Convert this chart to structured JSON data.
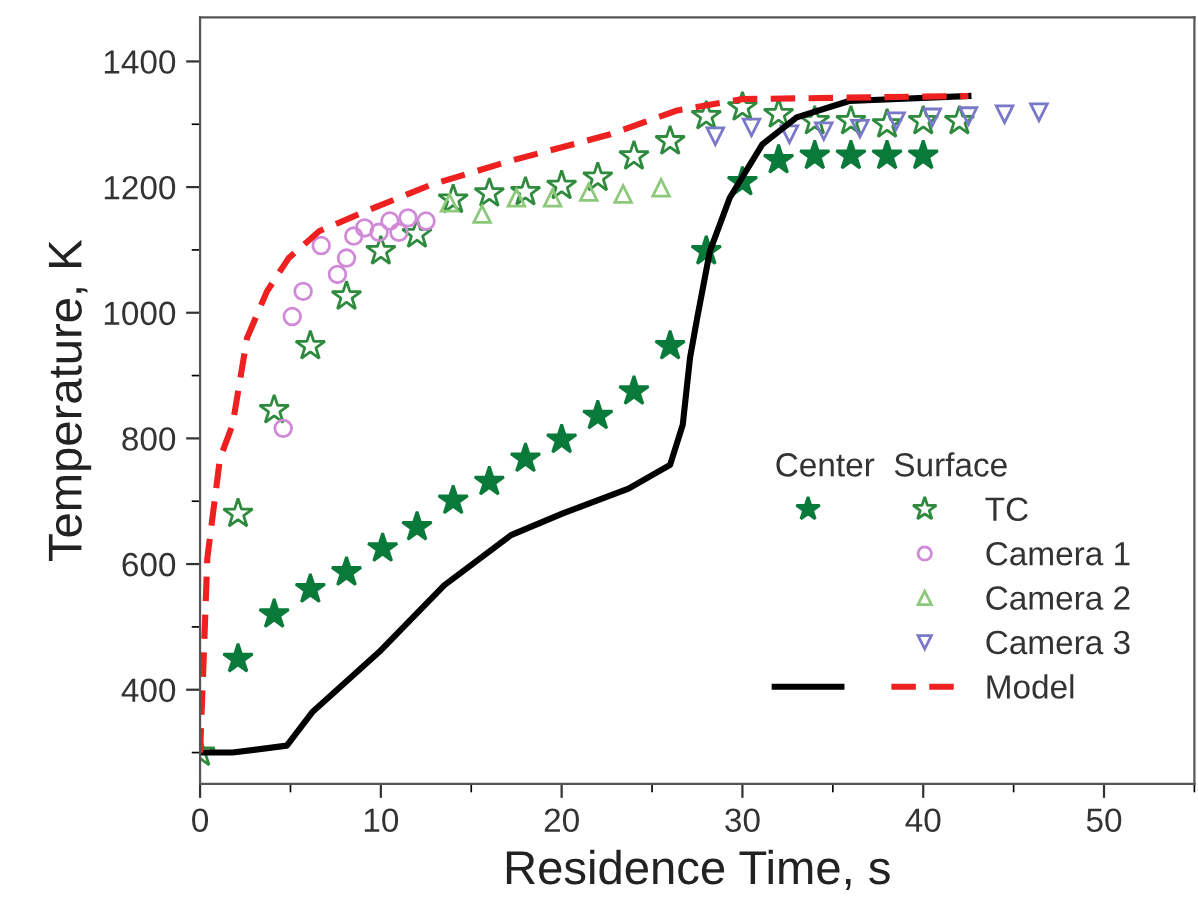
{
  "chart_data": {
    "type": "scatter",
    "xlabel": "Residence Time, s",
    "ylabel": "Temperature, K",
    "xlim": [
      0,
      55
    ],
    "ylim": [
      250,
      1470
    ],
    "xticks": [
      0,
      10,
      20,
      30,
      40,
      50
    ],
    "yticks": [
      400,
      600,
      800,
      1000,
      1200,
      1400
    ],
    "grid": false,
    "legend": "bottom right",
    "legend_title": "Center  Surface",
    "series": [
      {
        "marker": "star",
        "color": "#0a7a3a",
        "x": [
          2.1,
          4.1,
          6.1,
          8.1,
          10.1,
          12,
          14,
          16,
          18,
          20,
          22,
          24,
          26,
          28,
          30,
          32,
          34,
          36,
          38,
          40
        ],
        "values": [
          449,
          520,
          560,
          587,
          625,
          659,
          701,
          731,
          768,
          798,
          836,
          875,
          947,
          1098,
          1208,
          1243,
          1250,
          1250,
          1250,
          1250
        ]
      },
      {
        "name": "TC",
        "marker": "star",
        "color": "#2e8b3e",
        "x": [
          0,
          2.1,
          4.1,
          6.1,
          8.1,
          10,
          12,
          14,
          16,
          18,
          20,
          22,
          24,
          26,
          28,
          30,
          32,
          34,
          36,
          38,
          40,
          42
        ],
        "values": [
          300,
          680,
          845,
          947,
          1026,
          1098,
          1125,
          1180,
          1190,
          1192,
          1202,
          1215,
          1249,
          1273,
          1313,
          1327,
          1316,
          1305,
          1305,
          1300,
          1305,
          1305
        ]
      },
      {
        "name": "Camera 1",
        "marker": "circle",
        "color": "#d08ad8",
        "x": [
          4.6,
          5.1,
          5.7,
          7.6,
          8.1,
          6.7,
          8.5,
          9.1,
          9.9,
          10.5,
          11,
          11.5,
          12.5
        ],
        "values": [
          816,
          994,
          1034,
          1061,
          1087,
          1107,
          1122,
          1135,
          1128,
          1146,
          1128,
          1151,
          1146
        ]
      },
      {
        "name": "Camera 2",
        "marker": "triangle",
        "color": "#8cc97a",
        "x": [
          13.8,
          15.6,
          17.5,
          19.5,
          21.5,
          23.4,
          25.5
        ],
        "values": [
          1175,
          1157,
          1183,
          1183,
          1192,
          1189,
          1199
        ]
      },
      {
        "name": "Camera 3",
        "marker": "triangle_down",
        "color": "#7a78c8",
        "x": [
          28.5,
          30.5,
          32.6,
          34.5,
          36.5,
          38.5,
          40.5,
          42.5,
          44.5,
          46.4
        ],
        "values": [
          1281,
          1295,
          1284,
          1289,
          1293,
          1305,
          1311,
          1313,
          1316,
          1319
        ]
      },
      {
        "type": "line",
        "line_style": "solid",
        "color": "#000000",
        "x": [
          0,
          1.8,
          4.8,
          6.2,
          9.9,
          13.5,
          17.2,
          20.1,
          23.7,
          26,
          26.7,
          27.1,
          27.5,
          28.2,
          29.3,
          31.1,
          33,
          35.9,
          42.5
        ],
        "values": [
          300,
          300,
          311,
          364,
          460,
          566,
          646,
          681,
          720,
          758,
          822,
          928,
          992,
          1098,
          1183,
          1268,
          1311,
          1337,
          1345
        ]
      },
      {
        "name": "Model",
        "type": "line",
        "line_style": "dashed",
        "color": "#ee2020",
        "x": [
          0,
          0.2,
          0.4,
          1.1,
          1.8,
          2.6,
          3.7,
          4.9,
          6.6,
          9.2,
          12.8,
          17.2,
          22.7,
          26.4,
          30,
          42.5
        ],
        "values": [
          300,
          449,
          609,
          768,
          822,
          960,
          1034,
          1087,
          1130,
          1162,
          1204,
          1242,
          1284,
          1322,
          1340,
          1345
        ]
      }
    ]
  }
}
